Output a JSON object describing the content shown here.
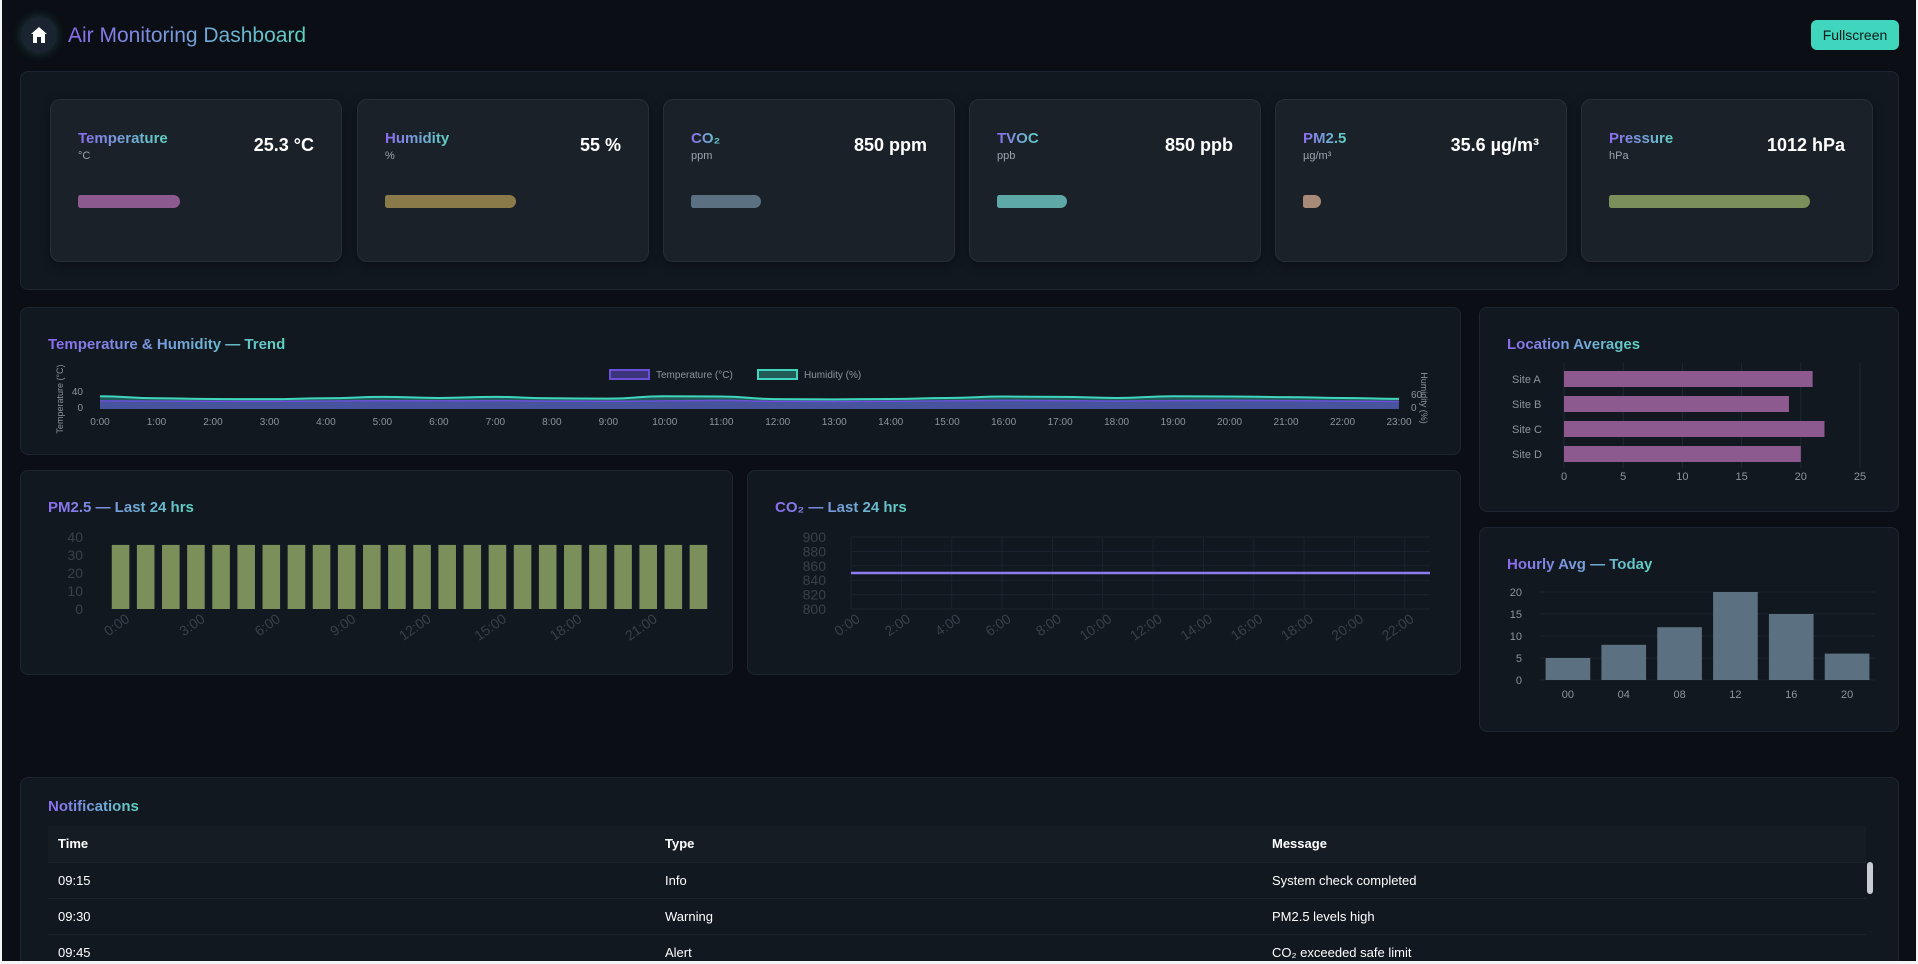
{
  "header": {
    "title": "Air Monitoring Dashboard",
    "fullscreen_label": "Fullscreen",
    "home_icon": "home-icon"
  },
  "kpis": [
    {
      "name": "Temperature",
      "unit": "°C",
      "value": "25.3 °C",
      "level": 0.35,
      "color": "#8c5a8f"
    },
    {
      "name": "Humidity",
      "unit": "%",
      "value": "55 %",
      "level": 0.45,
      "color": "#8a7a4a"
    },
    {
      "name": "CO₂",
      "unit": "ppm",
      "value": "850 ppm",
      "level": 0.24,
      "color": "#5b7080"
    },
    {
      "name": "TVOC",
      "unit": "ppb",
      "value": "850 ppb",
      "level": 0.24,
      "color": "#5fa8a8"
    },
    {
      "name": "PM2.5",
      "unit": "µg/m³",
      "value": "35.6 µg/m³",
      "level": 0.06,
      "color": "#a88a78"
    },
    {
      "name": "Pressure",
      "unit": "hPa",
      "value": "1012 hPa",
      "level": 0.69,
      "color": "#7a8f5a"
    }
  ],
  "trend": {
    "title": "Temperature & Humidity — Trend",
    "chart_data": {
      "type": "area",
      "x": [
        "0:00",
        "1:00",
        "2:00",
        "3:00",
        "4:00",
        "5:00",
        "6:00",
        "7:00",
        "8:00",
        "9:00",
        "10:00",
        "11:00",
        "12:00",
        "13:00",
        "14:00",
        "15:00",
        "16:00",
        "17:00",
        "18:00",
        "19:00",
        "20:00",
        "21:00",
        "22:00",
        "23:00"
      ],
      "series": [
        {
          "name": "Temperature (°C)",
          "axis": "left",
          "color": "#6a4fd8",
          "values": [
            26,
            25,
            24,
            24,
            25,
            27,
            26,
            27,
            25,
            24,
            26,
            28,
            24,
            23,
            24,
            26,
            28,
            27,
            25,
            27,
            28,
            27,
            25,
            23
          ]
        },
        {
          "name": "Humidity (%)",
          "axis": "right",
          "color": "#3fd6bd",
          "values": [
            62,
            50,
            46,
            45,
            50,
            58,
            52,
            58,
            50,
            48,
            62,
            60,
            45,
            44,
            46,
            52,
            60,
            58,
            52,
            62,
            60,
            57,
            52,
            47
          ]
        }
      ],
      "ylabel": "Temperature (°C)",
      "y2label": "Humidity (%)",
      "yticks": [
        "40",
        "0"
      ],
      "y2ticks": [
        "60",
        "0"
      ],
      "legend": "top-center"
    }
  },
  "location": {
    "title": "Location Averages",
    "chart_data": {
      "type": "bar",
      "orientation": "horizontal",
      "categories": [
        "Site A",
        "Site B",
        "Site C",
        "Site D"
      ],
      "values": [
        21,
        19,
        22,
        20
      ],
      "xlim": [
        0,
        25
      ],
      "xticks": [
        "0",
        "5",
        "10",
        "15",
        "20",
        "25"
      ],
      "color": "#8c5a8f"
    }
  },
  "pm25": {
    "title": "PM2.5 — Last 24 hrs",
    "chart_data": {
      "type": "bar",
      "categories": [
        "0:00",
        "1:00",
        "2:00",
        "3:00",
        "4:00",
        "5:00",
        "6:00",
        "7:00",
        "8:00",
        "9:00",
        "10:00",
        "11:00",
        "12:00",
        "13:00",
        "14:00",
        "15:00",
        "16:00",
        "17:00",
        "18:00",
        "19:00",
        "20:00",
        "21:00",
        "22:00",
        "23:00"
      ],
      "values": [
        35.6,
        35.6,
        35.6,
        35.6,
        35.6,
        35.6,
        35.6,
        35.6,
        35.6,
        35.6,
        35.6,
        35.6,
        35.6,
        35.6,
        35.6,
        35.6,
        35.6,
        35.6,
        35.6,
        35.6,
        35.6,
        35.6,
        35.6,
        35.6
      ],
      "ylim": [
        0,
        40
      ],
      "yticks": [
        "40",
        "30",
        "20",
        "10",
        "0"
      ],
      "xticklabels": [
        "0:00",
        "3:00",
        "6:00",
        "9:00",
        "12:00",
        "15:00",
        "18:00",
        "21:00"
      ],
      "color": "#7a8f5a"
    }
  },
  "co2": {
    "title": "CO₂ — Last 24 hrs",
    "chart_data": {
      "type": "line",
      "categories": [
        "0:00",
        "1:00",
        "2:00",
        "3:00",
        "4:00",
        "5:00",
        "6:00",
        "7:00",
        "8:00",
        "9:00",
        "10:00",
        "11:00",
        "12:00",
        "13:00",
        "14:00",
        "15:00",
        "16:00",
        "17:00",
        "18:00",
        "19:00",
        "20:00",
        "21:00",
        "22:00",
        "23:00"
      ],
      "values": [
        850,
        850,
        850,
        850,
        850,
        850,
        850,
        850,
        850,
        850,
        850,
        850,
        850,
        850,
        850,
        850,
        850,
        850,
        850,
        850,
        850,
        850,
        850,
        850
      ],
      "ylim": [
        800,
        900
      ],
      "yticks": [
        "900",
        "880",
        "860",
        "840",
        "820",
        "800"
      ],
      "xticklabels": [
        "0:00",
        "2:00",
        "4:00",
        "6:00",
        "8:00",
        "10:00",
        "12:00",
        "14:00",
        "16:00",
        "18:00",
        "20:00",
        "22:00"
      ],
      "color": "#8c7cf0"
    }
  },
  "hourly": {
    "title": "Hourly Avg — Today",
    "chart_data": {
      "type": "bar",
      "categories": [
        "00",
        "04",
        "08",
        "12",
        "16",
        "20"
      ],
      "values": [
        5,
        8,
        12,
        20,
        15,
        6
      ],
      "ylim": [
        0,
        20
      ],
      "yticks": [
        "20",
        "15",
        "10",
        "5",
        "0"
      ],
      "color": "#5b7080"
    }
  },
  "notifications": {
    "title": "Notifications",
    "columns": [
      "Time",
      "Type",
      "Message"
    ],
    "rows": [
      [
        "09:15",
        "Info",
        "System check completed"
      ],
      [
        "09:30",
        "Warning",
        "PM2.5 levels high"
      ],
      [
        "09:45",
        "Alert",
        "CO₂ exceeded safe limit"
      ]
    ]
  }
}
